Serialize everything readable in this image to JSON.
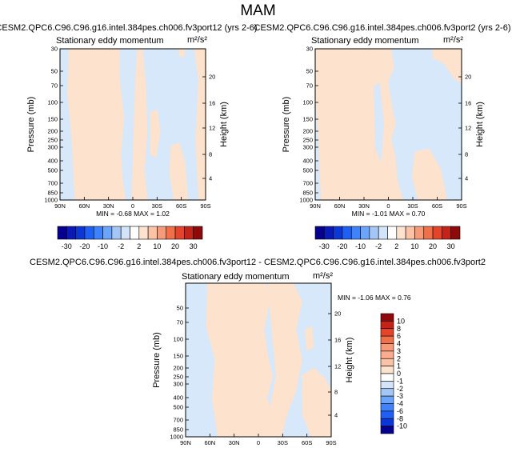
{
  "page": {
    "title": "MAM"
  },
  "palette": {
    "neg_light": "#d6e8fa",
    "pos_light": "#fde2cd",
    "frame": "#000000"
  },
  "colorbar_top": {
    "labels": [
      "-30",
      "-20",
      "-10",
      "-2",
      "2",
      "10",
      "20",
      "30"
    ],
    "colors": [
      "#05008e",
      "#0a1bb5",
      "#0b37d6",
      "#1f5ff3",
      "#3f82fb",
      "#6aa4fb",
      "#a3c6f6",
      "#d3e4f9",
      "#ffffff",
      "#fde2cd",
      "#fbc2a6",
      "#f79a7a",
      "#f0704a",
      "#e4452a",
      "#c42417",
      "#8e0a0a"
    ]
  },
  "colorbar_side": {
    "labels": [
      "10",
      "8",
      "6",
      "4",
      "3",
      "2",
      "1",
      "0",
      "-1",
      "-2",
      "-3",
      "-4",
      "-6",
      "-8",
      "-10"
    ],
    "colors": [
      "#8e0a0a",
      "#c42417",
      "#e4452a",
      "#f0704a",
      "#f79a7a",
      "#fbac8e",
      "#fbc2a6",
      "#fde2cd",
      "#ffffff",
      "#d3e4f9",
      "#a3c6f6",
      "#6aa4fb",
      "#3f82fb",
      "#1f5ff3",
      "#0b37d6",
      "#05008e"
    ]
  },
  "chart_data": [
    {
      "type": "heatmap",
      "title": "CESM2.QPC6.C96.C96.g16.intel.384pes.ch006.fv3port12 (yrs 2-6)",
      "subtitle_left": "Stationary eddy momentum",
      "units": "m²/s²",
      "xlabel": "",
      "ylabel": "Pressure (mb)",
      "ylabel_right": "Height (km)",
      "x_ticks": [
        "90N",
        "60N",
        "30N",
        "0",
        "30S",
        "60S",
        "90S"
      ],
      "y_ticks": [
        "30",
        "50",
        "70",
        "100",
        "150",
        "200",
        "250",
        "300",
        "400",
        "500",
        "700",
        "850",
        "1000"
      ],
      "y_ticks_right": [
        "20",
        "16",
        "12",
        "8",
        "4"
      ],
      "stats": "MIN = -0.68  MAX =  1.02"
    },
    {
      "type": "heatmap",
      "title": "CESM2.QPC6.C96.C96.g16.intel.384pes.ch006.fv3port2 (yrs 2-6)",
      "subtitle_left": "Stationary eddy momentum",
      "units": "m²/s²",
      "xlabel": "",
      "ylabel": "Pressure (mb)",
      "ylabel_right": "Height (km)",
      "x_ticks": [
        "90N",
        "60N",
        "30N",
        "0",
        "30S",
        "60S",
        "90S"
      ],
      "y_ticks": [
        "30",
        "50",
        "70",
        "100",
        "150",
        "200",
        "250",
        "300",
        "400",
        "500",
        "700",
        "850",
        "1000"
      ],
      "y_ticks_right": [
        "20",
        "16",
        "12",
        "8",
        "4"
      ],
      "stats": "MIN = -1.01  MAX =  0.70"
    },
    {
      "type": "heatmap",
      "title": "CESM2.QPC6.C96.C96.g16.intel.384pes.ch006.fv3port12 - CESM2.QPC6.C96.C96.g16.intel.384pes.ch006.fv3port2",
      "subtitle_left": "Stationary eddy momentum",
      "units": "m²/s²",
      "xlabel": "",
      "ylabel": "Pressure (mb)",
      "ylabel_right": "Height (km)",
      "x_ticks": [
        "90N",
        "60N",
        "30N",
        "0",
        "30S",
        "60S",
        "90S"
      ],
      "y_ticks": [
        "50",
        "70",
        "100",
        "150",
        "200",
        "250",
        "300",
        "400",
        "500",
        "700",
        "850",
        "1000"
      ],
      "y_ticks_right": [
        "20",
        "16",
        "12",
        "8",
        "4"
      ],
      "stats": "MIN = -1.06  MAX =  0.76"
    }
  ]
}
